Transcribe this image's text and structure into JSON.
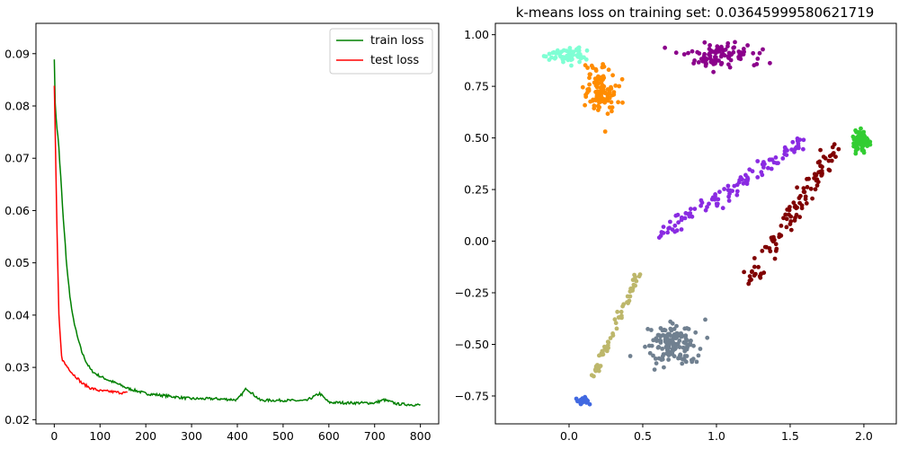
{
  "chart_data": [
    {
      "type": "line",
      "title": "",
      "xlabel": "",
      "ylabel": "",
      "xlim": [
        -40,
        840
      ],
      "ylim": [
        0.0192,
        0.0958
      ],
      "xticks": [
        0,
        100,
        200,
        300,
        400,
        500,
        600,
        700,
        800
      ],
      "yticks": [
        0.02,
        0.03,
        0.04,
        0.05,
        0.06,
        0.07,
        0.08,
        0.09
      ],
      "legend": "top-right",
      "series": [
        {
          "name": "train loss",
          "color": "#008000",
          "x": [
            0,
            2,
            5,
            10,
            15,
            20,
            25,
            30,
            35,
            40,
            50,
            60,
            70,
            80,
            90,
            100,
            120,
            140,
            160,
            180,
            200,
            250,
            300,
            350,
            400,
            420,
            450,
            500,
            550,
            580,
            600,
            650,
            700,
            720,
            750,
            800
          ],
          "y": [
            0.0895,
            0.08,
            0.077,
            0.072,
            0.065,
            0.058,
            0.052,
            0.047,
            0.043,
            0.04,
            0.036,
            0.033,
            0.031,
            0.0295,
            0.0288,
            0.0283,
            0.0275,
            0.0268,
            0.026,
            0.0255,
            0.025,
            0.0245,
            0.024,
            0.024,
            0.0238,
            0.026,
            0.0237,
            0.0237,
            0.0236,
            0.025,
            0.0233,
            0.0232,
            0.0232,
            0.0238,
            0.023,
            0.0228
          ]
        },
        {
          "name": "test loss",
          "color": "#ff0000",
          "x": [
            0,
            2,
            5,
            8,
            10,
            15,
            20,
            25,
            30,
            40,
            50,
            60,
            70,
            80,
            90,
            100,
            120,
            140,
            160
          ],
          "y": [
            0.084,
            0.075,
            0.06,
            0.048,
            0.04,
            0.033,
            0.031,
            0.0305,
            0.03,
            0.0288,
            0.028,
            0.027,
            0.0265,
            0.026,
            0.0258,
            0.0255,
            0.0254,
            0.0252,
            0.0251
          ]
        }
      ]
    },
    {
      "type": "scatter",
      "title": "k-means loss on training set: 0.03645999580621719",
      "xlabel": "",
      "ylabel": "",
      "xlim": [
        -0.5,
        2.22
      ],
      "ylim": [
        -0.885,
        1.055
      ],
      "xticks": [
        "0.0",
        "0.5",
        "1.0",
        "1.5",
        "2.0"
      ],
      "yticks": [
        "−0.75",
        "−0.50",
        "−0.25",
        "0.00",
        "0.25",
        "0.50",
        "0.75",
        "1.00"
      ],
      "grid": false,
      "clusters": [
        {
          "color": "#7fffd4",
          "cx": 0.0,
          "cy": 0.9,
          "sx": 0.12,
          "sy": 0.03,
          "n": 60
        },
        {
          "color": "#ff8c00",
          "cx": 0.22,
          "cy": 0.72,
          "sx": 0.1,
          "sy": 0.1,
          "n": 110
        },
        {
          "color": "#8b008b",
          "cx": 1.0,
          "cy": 0.9,
          "sx": 0.22,
          "sy": 0.05,
          "n": 100
        },
        {
          "color": "#32cd32",
          "cx": 1.98,
          "cy": 0.48,
          "sx": 0.05,
          "sy": 0.04,
          "n": 70
        },
        {
          "color": "#8a2be2",
          "cx1": 0.62,
          "cy1": 0.02,
          "cx2": 1.58,
          "cy2": 0.49,
          "spread": 0.035,
          "n": 110
        },
        {
          "color": "#800000",
          "cx1": 1.22,
          "cy1": -0.2,
          "cx2": 1.8,
          "cy2": 0.45,
          "spread": 0.04,
          "n": 110
        },
        {
          "color": "#bdb76b",
          "cx1": 0.16,
          "cy1": -0.66,
          "cx2": 0.48,
          "cy2": -0.14,
          "spread": 0.02,
          "n": 60
        },
        {
          "color": "#708090",
          "cx": 0.7,
          "cy": -0.5,
          "sx": 0.14,
          "sy": 0.08,
          "n": 150
        },
        {
          "color": "#4169e1",
          "cx": 0.09,
          "cy": -0.77,
          "sx": 0.03,
          "sy": 0.015,
          "n": 30
        }
      ]
    }
  ]
}
